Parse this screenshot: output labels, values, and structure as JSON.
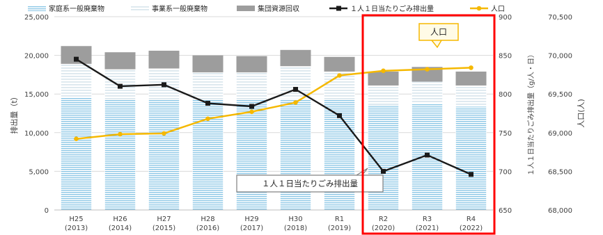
{
  "chart_data": {
    "type": "bar",
    "categories": [
      "H25\n(2013)",
      "H26\n(2014)",
      "H27\n(2015)",
      "H28\n(2016)",
      "H29\n(2017)",
      "H30\n(2018)",
      "R1\n(2019)",
      "R2\n(2020)",
      "R3\n(2021)",
      "R4\n(2022)"
    ],
    "series": [
      {
        "name": "家庭系一般廃棄物",
        "type": "stacked-bar",
        "axis": "left",
        "values": [
          14600,
          14300,
          14300,
          14300,
          14300,
          14400,
          14300,
          13600,
          13800,
          13400
        ]
      },
      {
        "name": "事業系一般廃棄物",
        "type": "stacked-bar",
        "axis": "left",
        "values": [
          4300,
          3900,
          4000,
          3500,
          3500,
          4200,
          3600,
          2500,
          2800,
          2700
        ]
      },
      {
        "name": "集団資源回収",
        "type": "stacked-bar",
        "axis": "left",
        "values": [
          2300,
          2200,
          2300,
          2200,
          2100,
          2100,
          1900,
          1800,
          1900,
          1800
        ]
      },
      {
        "name": "１人１日当たりごみ排出量",
        "type": "line",
        "axis": "right1",
        "values": [
          845,
          810,
          812,
          788,
          784,
          806,
          772,
          700,
          721,
          696
        ]
      },
      {
        "name": "人口",
        "type": "line",
        "axis": "right2",
        "values": [
          68920,
          68980,
          68990,
          69180,
          69270,
          69390,
          69740,
          69800,
          69820,
          69840
        ]
      }
    ],
    "ylabel": "排出量（t）",
    "y2label": "１人１日当たりごみ排出量（g/人・日）",
    "y3label": "人口(人)",
    "ylim": [
      0,
      25000
    ],
    "y2lim": [
      650,
      900
    ],
    "y3lim": [
      68000,
      70500
    ],
    "yticks": [
      "0",
      "5,000",
      "10,000",
      "15,000",
      "20,000",
      "25,000"
    ],
    "y2ticks": [
      "650",
      "700",
      "750",
      "800",
      "850",
      "900"
    ],
    "y3ticks": [
      "68,000",
      "68,500",
      "69,000",
      "69,500",
      "70,000",
      "70,500"
    ],
    "annotations": {
      "population": "人口",
      "per_capita": "１人１日当たりごみ排出量"
    },
    "highlight": {
      "from_index": 7,
      "to_index": 9,
      "color": "#ff0000"
    },
    "colors": {
      "household": "#a8d4ec",
      "business": "#dbe9f2",
      "recycle": "#9d9d9d",
      "per_capita_line": "#1a1a1a",
      "population_line": "#f5b800",
      "grid": "#d9d9d9"
    },
    "legend_position": "top"
  }
}
